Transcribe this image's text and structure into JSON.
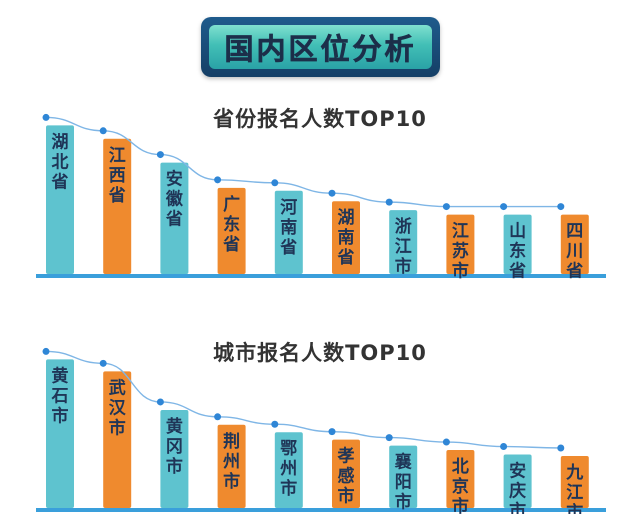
{
  "banner": {
    "text": "国内区位分析"
  },
  "colors": {
    "teal": "#5ec3cf",
    "orange": "#ef8a2e",
    "baseline": "#3a9fdb",
    "trend": "#2f86d6"
  },
  "chart_data": [
    {
      "type": "bar",
      "title": "省份报名人数TOP10",
      "categories": [
        "湖北省",
        "江西省",
        "安徽省",
        "广东省",
        "河南省",
        "湖南省",
        "浙江市",
        "江苏市",
        "山东省",
        "四川省"
      ],
      "values": [
        10,
        9.1,
        7.5,
        5.8,
        5.6,
        4.9,
        4.3,
        4.0,
        4.0,
        4.0
      ],
      "bar_colors": [
        "teal",
        "orange",
        "teal",
        "orange",
        "teal",
        "orange",
        "teal",
        "orange",
        "teal",
        "orange"
      ],
      "ylim": [
        0,
        10.5
      ],
      "trend_line": true
    },
    {
      "type": "bar",
      "title": "城市报名人数TOP10",
      "categories": [
        "黄石市",
        "武汉市",
        "黄冈市",
        "荆州市",
        "鄂州市",
        "孝感市",
        "襄阳市",
        "北京市",
        "安庆市",
        "九江市"
      ],
      "values": [
        10,
        9.2,
        6.6,
        5.6,
        5.1,
        4.6,
        4.2,
        3.9,
        3.6,
        3.5
      ],
      "bar_colors": [
        "teal",
        "orange",
        "teal",
        "orange",
        "teal",
        "orange",
        "teal",
        "orange",
        "teal",
        "orange"
      ],
      "ylim": [
        0,
        10.5
      ],
      "trend_line": true
    }
  ]
}
